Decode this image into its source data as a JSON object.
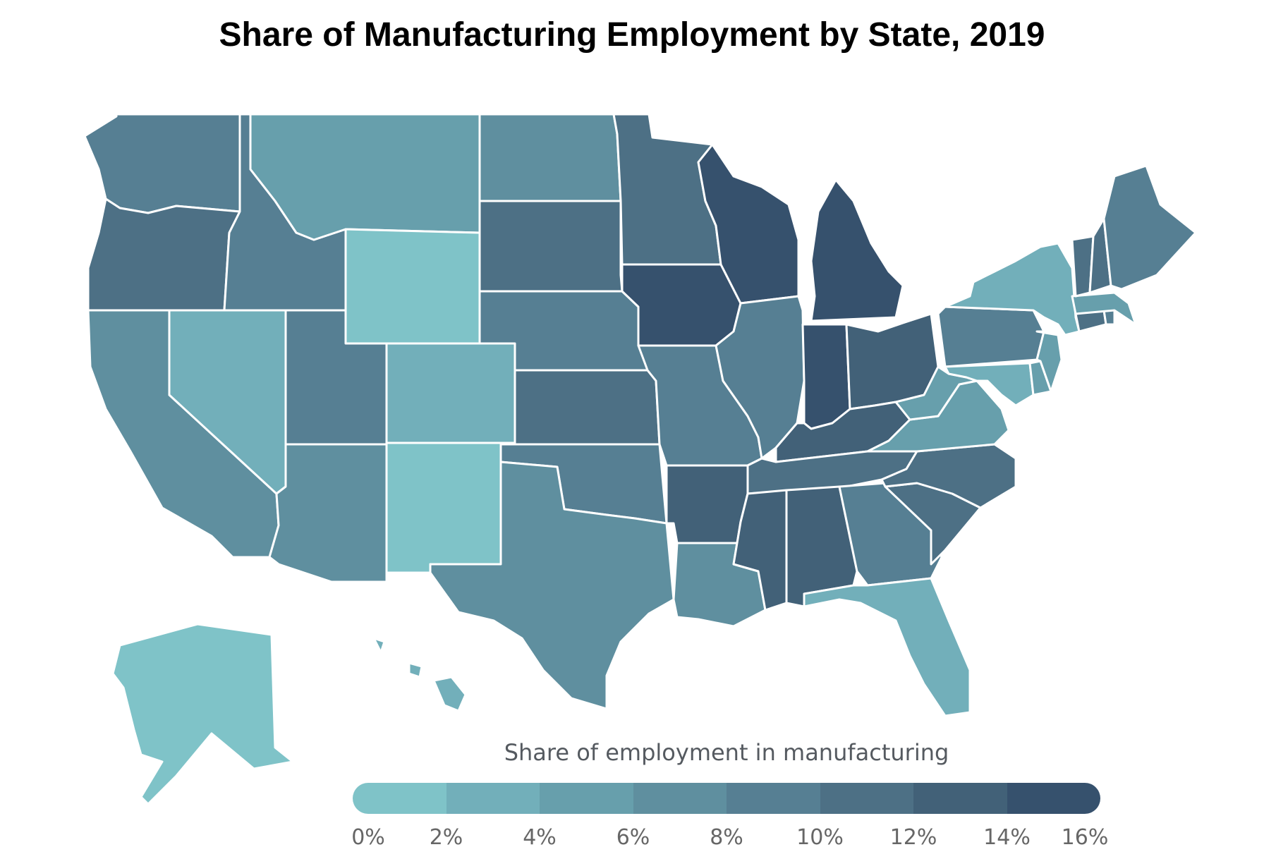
{
  "title": "Share of Manufacturing Employment by State, 2019",
  "legend": {
    "title": "Share of employment in manufacturing",
    "ticks": [
      "0%",
      "2%",
      "4%",
      "6%",
      "8%",
      "10%",
      "12%",
      "14%",
      "16%"
    ],
    "colors": [
      "#7fc3c8",
      "#72afba",
      "#679fac",
      "#5f8f9f",
      "#567f93",
      "#4d7085",
      "#426178",
      "#36516d"
    ]
  },
  "states": [
    {
      "abbr": "WA",
      "color": "#567f93"
    },
    {
      "abbr": "OR",
      "color": "#4d7085"
    },
    {
      "abbr": "CA",
      "color": "#5f8f9f"
    },
    {
      "abbr": "NV",
      "color": "#72afba"
    },
    {
      "abbr": "ID",
      "color": "#567f93"
    },
    {
      "abbr": "MT",
      "color": "#679fac"
    },
    {
      "abbr": "WY",
      "color": "#7fc3c8"
    },
    {
      "abbr": "UT",
      "color": "#567f93"
    },
    {
      "abbr": "AZ",
      "color": "#5f8f9f"
    },
    {
      "abbr": "CO",
      "color": "#72afba"
    },
    {
      "abbr": "NM",
      "color": "#7fc3c8"
    },
    {
      "abbr": "ND",
      "color": "#5f8f9f"
    },
    {
      "abbr": "SD",
      "color": "#4d7085"
    },
    {
      "abbr": "NE",
      "color": "#567f93"
    },
    {
      "abbr": "KS",
      "color": "#4d7085"
    },
    {
      "abbr": "OK",
      "color": "#567f93"
    },
    {
      "abbr": "TX",
      "color": "#5f8f9f"
    },
    {
      "abbr": "MN",
      "color": "#4d7085"
    },
    {
      "abbr": "IA",
      "color": "#36516d"
    },
    {
      "abbr": "MO",
      "color": "#567f93"
    },
    {
      "abbr": "AR",
      "color": "#426178"
    },
    {
      "abbr": "LA",
      "color": "#5f8f9f"
    },
    {
      "abbr": "WI",
      "color": "#36516d"
    },
    {
      "abbr": "IL",
      "color": "#567f93"
    },
    {
      "abbr": "MI",
      "color": "#36516d"
    },
    {
      "abbr": "IN",
      "color": "#36516d"
    },
    {
      "abbr": "OH",
      "color": "#426178"
    },
    {
      "abbr": "KY",
      "color": "#426178"
    },
    {
      "abbr": "TN",
      "color": "#4d7085"
    },
    {
      "abbr": "MS",
      "color": "#426178"
    },
    {
      "abbr": "AL",
      "color": "#426178"
    },
    {
      "abbr": "GA",
      "color": "#567f93"
    },
    {
      "abbr": "FL",
      "color": "#72afba"
    },
    {
      "abbr": "SC",
      "color": "#4d7085"
    },
    {
      "abbr": "NC",
      "color": "#4d7085"
    },
    {
      "abbr": "VA",
      "color": "#679fac"
    },
    {
      "abbr": "WV",
      "color": "#679fac"
    },
    {
      "abbr": "PA",
      "color": "#567f93"
    },
    {
      "abbr": "NY",
      "color": "#72afba"
    },
    {
      "abbr": "MD",
      "color": "#72afba"
    },
    {
      "abbr": "DE",
      "color": "#679fac"
    },
    {
      "abbr": "NJ",
      "color": "#679fac"
    },
    {
      "abbr": "CT",
      "color": "#4d7085"
    },
    {
      "abbr": "RI",
      "color": "#567f93"
    },
    {
      "abbr": "MA",
      "color": "#679fac"
    },
    {
      "abbr": "VT",
      "color": "#4d7085"
    },
    {
      "abbr": "NH",
      "color": "#4d7085"
    },
    {
      "abbr": "ME",
      "color": "#567f93"
    },
    {
      "abbr": "AK",
      "color": "#7fc3c8"
    },
    {
      "abbr": "HI",
      "color": "#72afba"
    }
  ]
}
